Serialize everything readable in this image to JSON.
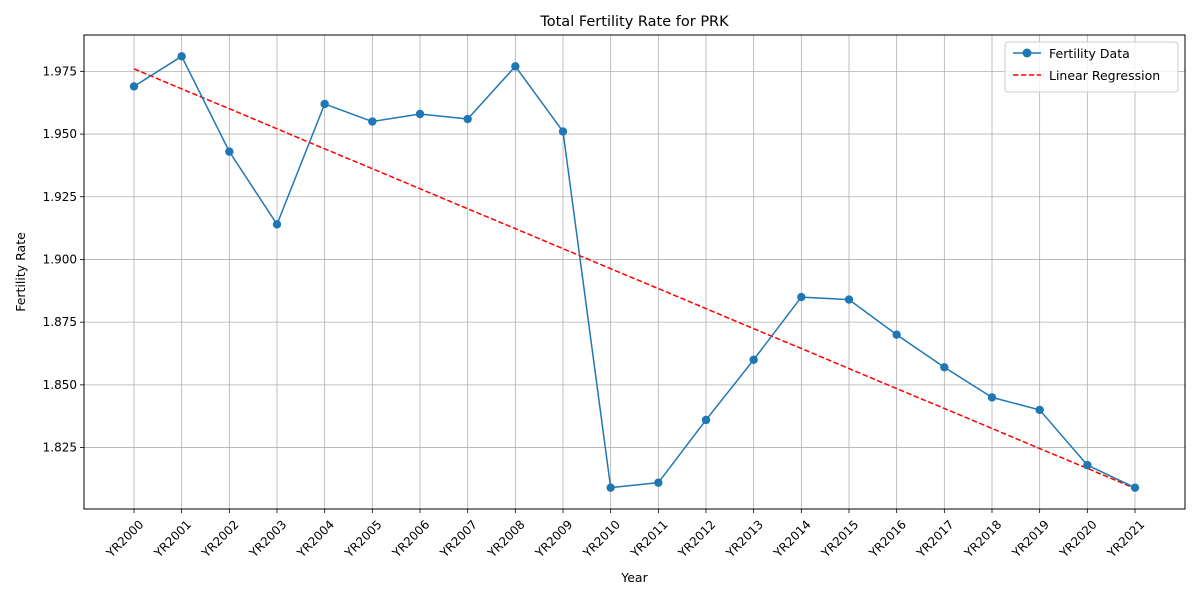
{
  "chart_data": {
    "type": "line",
    "title": "Total Fertility Rate for PRK",
    "xlabel": "Year",
    "ylabel": "Fertility Rate",
    "categories": [
      "YR2000",
      "YR2001",
      "YR2002",
      "YR2003",
      "YR2004",
      "YR2005",
      "YR2006",
      "YR2007",
      "YR2008",
      "YR2009",
      "YR2010",
      "YR2011",
      "YR2012",
      "YR2013",
      "YR2014",
      "YR2015",
      "YR2016",
      "YR2017",
      "YR2018",
      "YR2019",
      "YR2020",
      "YR2021"
    ],
    "series": [
      {
        "name": "Fertility Data",
        "style": "solid-with-markers",
        "color": "#1f77b4",
        "values": [
          1.969,
          1.981,
          1.943,
          1.914,
          1.962,
          1.955,
          1.958,
          1.956,
          1.977,
          1.951,
          1.809,
          1.811,
          1.836,
          1.86,
          1.885,
          1.884,
          1.87,
          1.857,
          1.845,
          1.84,
          1.818,
          1.809
        ]
      },
      {
        "name": "Linear Regression",
        "style": "dashed",
        "color": "#ff0000",
        "values": [
          1.976,
          1.968,
          1.9601,
          1.9521,
          1.9441,
          1.9362,
          1.9282,
          1.9202,
          1.9123,
          1.9043,
          1.8963,
          1.8884,
          1.8804,
          1.8724,
          1.8645,
          1.8565,
          1.8485,
          1.8406,
          1.8326,
          1.8246,
          1.8167,
          1.8087
        ]
      }
    ],
    "yticks": [
      1.825,
      1.85,
      1.875,
      1.9,
      1.925,
      1.95,
      1.975
    ],
    "ytick_labels": [
      "1.825",
      "1.850",
      "1.875",
      "1.900",
      "1.925",
      "1.950",
      "1.975"
    ],
    "ylim": [
      1.8005,
      1.9895
    ],
    "grid": true,
    "legend_position": "top-right"
  }
}
